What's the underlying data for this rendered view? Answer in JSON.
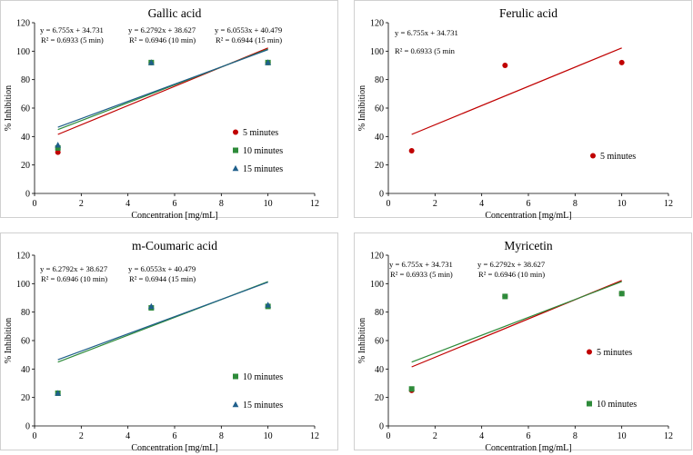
{
  "colors": {
    "s5": "#c00000",
    "s10": "#2e8b3a",
    "s15": "#1f5f8b",
    "axis": "#000000"
  },
  "chart_data": [
    {
      "type": "scatter",
      "title": "Gallic acid",
      "xlabel": "Concentration [mg/mL]",
      "ylabel": "% Inhibition",
      "xlim": [
        0,
        12
      ],
      "ylim": [
        0,
        120
      ],
      "xticks": [
        0,
        2,
        4,
        6,
        8,
        10,
        12
      ],
      "yticks": [
        0,
        20,
        40,
        60,
        80,
        100,
        120
      ],
      "series": [
        {
          "name": "5 minutes",
          "marker": "circle",
          "color": "s5",
          "x": [
            1,
            5,
            10
          ],
          "y": [
            29,
            92,
            92
          ],
          "trend": {
            "slope": 6.755,
            "intercept": 34.731
          },
          "equation": "y = 6.755x + 34.731",
          "r2": "R² = 0.6933 (5 min)"
        },
        {
          "name": "10 minutes",
          "marker": "square",
          "color": "s10",
          "x": [
            1,
            5,
            10
          ],
          "y": [
            32,
            92,
            92
          ],
          "trend": {
            "slope": 6.2792,
            "intercept": 38.627
          },
          "equation": "y = 6.2792x + 38.627",
          "r2": "R² = 0.6946 (10 min)"
        },
        {
          "name": "15 minutes",
          "marker": "triangle",
          "color": "s15",
          "x": [
            1,
            5,
            10
          ],
          "y": [
            34,
            92,
            92
          ],
          "trend": {
            "slope": 6.0553,
            "intercept": 40.479
          },
          "equation": "y = 6.0553x + 40.479",
          "r2": "R² = 0.6944 (15 min)"
        }
      ]
    },
    {
      "type": "scatter",
      "title": "Ferulic acid",
      "xlabel": "Concentration [mg/mL]",
      "ylabel": "% Inhibition",
      "xlim": [
        0,
        12
      ],
      "ylim": [
        0,
        120
      ],
      "xticks": [
        0,
        2,
        4,
        6,
        8,
        10,
        12
      ],
      "yticks": [
        0,
        20,
        40,
        60,
        80,
        100,
        120
      ],
      "series": [
        {
          "name": "5 minutes",
          "marker": "circle",
          "color": "s5",
          "x": [
            1,
            5,
            10
          ],
          "y": [
            30,
            90,
            92
          ],
          "trend": {
            "slope": 6.755,
            "intercept": 34.731
          },
          "equation": "y = 6.755x + 34.731",
          "r2": "R² = 0.6933 (5 min"
        }
      ]
    },
    {
      "type": "scatter",
      "title": "m-Coumaric acid",
      "xlabel": "Concentration [mg/mL]",
      "ylabel": "% Inhibition",
      "xlim": [
        0,
        12
      ],
      "ylim": [
        0,
        120
      ],
      "xticks": [
        0,
        2,
        4,
        6,
        8,
        10,
        12
      ],
      "yticks": [
        0,
        20,
        40,
        60,
        80,
        100,
        120
      ],
      "series": [
        {
          "name": "10 minutes",
          "marker": "square",
          "color": "s10",
          "x": [
            1,
            5,
            10
          ],
          "y": [
            23,
            83,
            84
          ],
          "trend": {
            "slope": 6.2792,
            "intercept": 38.627
          },
          "equation": "y = 6.2792x + 38.627",
          "r2": "R² = 0.6946 (10 min)"
        },
        {
          "name": "15 minutes",
          "marker": "triangle",
          "color": "s15",
          "x": [
            1,
            5,
            10
          ],
          "y": [
            23,
            84,
            85
          ],
          "trend": {
            "slope": 6.0553,
            "intercept": 40.479
          },
          "equation": "y = 6.0553x + 40.479",
          "r2": "R² = 0.6944 (15 min)"
        }
      ]
    },
    {
      "type": "scatter",
      "title": "Myricetin",
      "xlabel": "Concentration [mg/mL]",
      "ylabel": "% Inhibition",
      "xlim": [
        0,
        12
      ],
      "ylim": [
        0,
        120
      ],
      "xticks": [
        0,
        2,
        4,
        6,
        8,
        10,
        12
      ],
      "yticks": [
        0,
        20,
        40,
        60,
        80,
        100,
        120
      ],
      "series": [
        {
          "name": "5 minutes",
          "marker": "circle",
          "color": "s5",
          "x": [
            1,
            5,
            10
          ],
          "y": [
            25,
            91,
            93
          ],
          "trend": {
            "slope": 6.755,
            "intercept": 34.731
          },
          "equation": "y = 6.755x + 34.731",
          "r2": "R² = 0.6933 (5 min)"
        },
        {
          "name": "10 minutes",
          "marker": "square",
          "color": "s10",
          "x": [
            1,
            5,
            10
          ],
          "y": [
            26,
            91,
            93
          ],
          "trend": {
            "slope": 6.2792,
            "intercept": 38.627
          },
          "equation": "y = 6.2792x + 38.627",
          "r2": "R² = 0.6946 (10 min)"
        }
      ]
    }
  ]
}
